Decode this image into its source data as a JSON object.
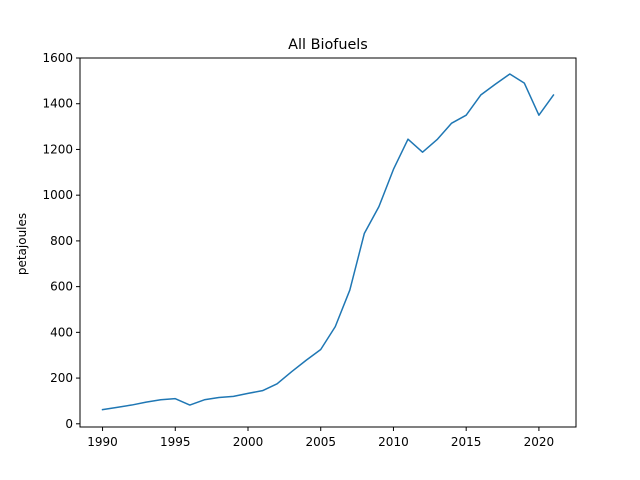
{
  "chart_data": {
    "type": "line",
    "title": "All Biofuels",
    "xlabel": "",
    "ylabel": "petajoules",
    "xlim": [
      1988.45,
      2022.55
    ],
    "ylim": [
      -14,
      1600
    ],
    "xticks": [
      1990,
      1995,
      2000,
      2005,
      2010,
      2015,
      2020
    ],
    "yticks": [
      0,
      200,
      400,
      600,
      800,
      1000,
      1200,
      1400,
      1600
    ],
    "grid": false,
    "line_color": "#1f77b4",
    "series": [
      {
        "x": [
          1990,
          1991,
          1992,
          1993,
          1994,
          1995,
          1996,
          1997,
          1998,
          1999,
          2000,
          2001,
          2002,
          2003,
          2004,
          2005,
          2006,
          2007,
          2008,
          2009,
          2010,
          2011,
          2012,
          2013,
          2014,
          2015,
          2016,
          2017,
          2018,
          2019,
          2020,
          2021
        ],
        "values": [
          62,
          72,
          82,
          95,
          105,
          110,
          82,
          105,
          115,
          120,
          133,
          145,
          175,
          228,
          278,
          325,
          425,
          585,
          833,
          950,
          1113,
          1245,
          1188,
          1243,
          1315,
          1350,
          1438,
          1485,
          1530,
          1490,
          1350,
          1438
        ]
      }
    ]
  }
}
